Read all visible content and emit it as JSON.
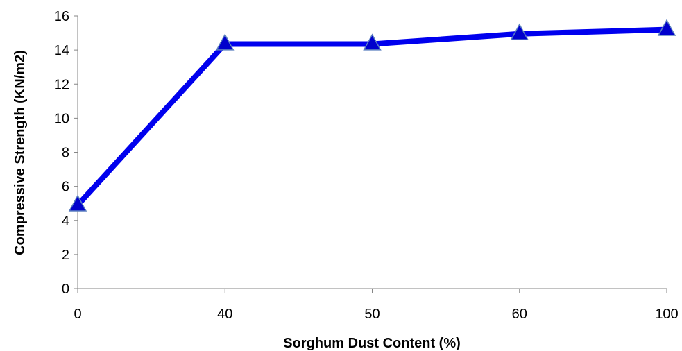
{
  "chart_data": {
    "type": "line",
    "title": "",
    "xlabel": "Sorghum Dust Content (%)",
    "ylabel": "Compressive Strength (KN/m2)",
    "categories": [
      "0",
      "40",
      "50",
      "60",
      "100"
    ],
    "series": [
      {
        "values": [
          4.9,
          14.35,
          14.35,
          14.95,
          15.2
        ],
        "color": "#0000EE",
        "marker": "triangle",
        "marker_color": "#0000CC"
      }
    ],
    "ylim": [
      0,
      16
    ],
    "y_ticks": [
      0,
      2,
      4,
      6,
      8,
      10,
      12,
      14,
      16
    ],
    "grid": false,
    "legend": "none"
  }
}
